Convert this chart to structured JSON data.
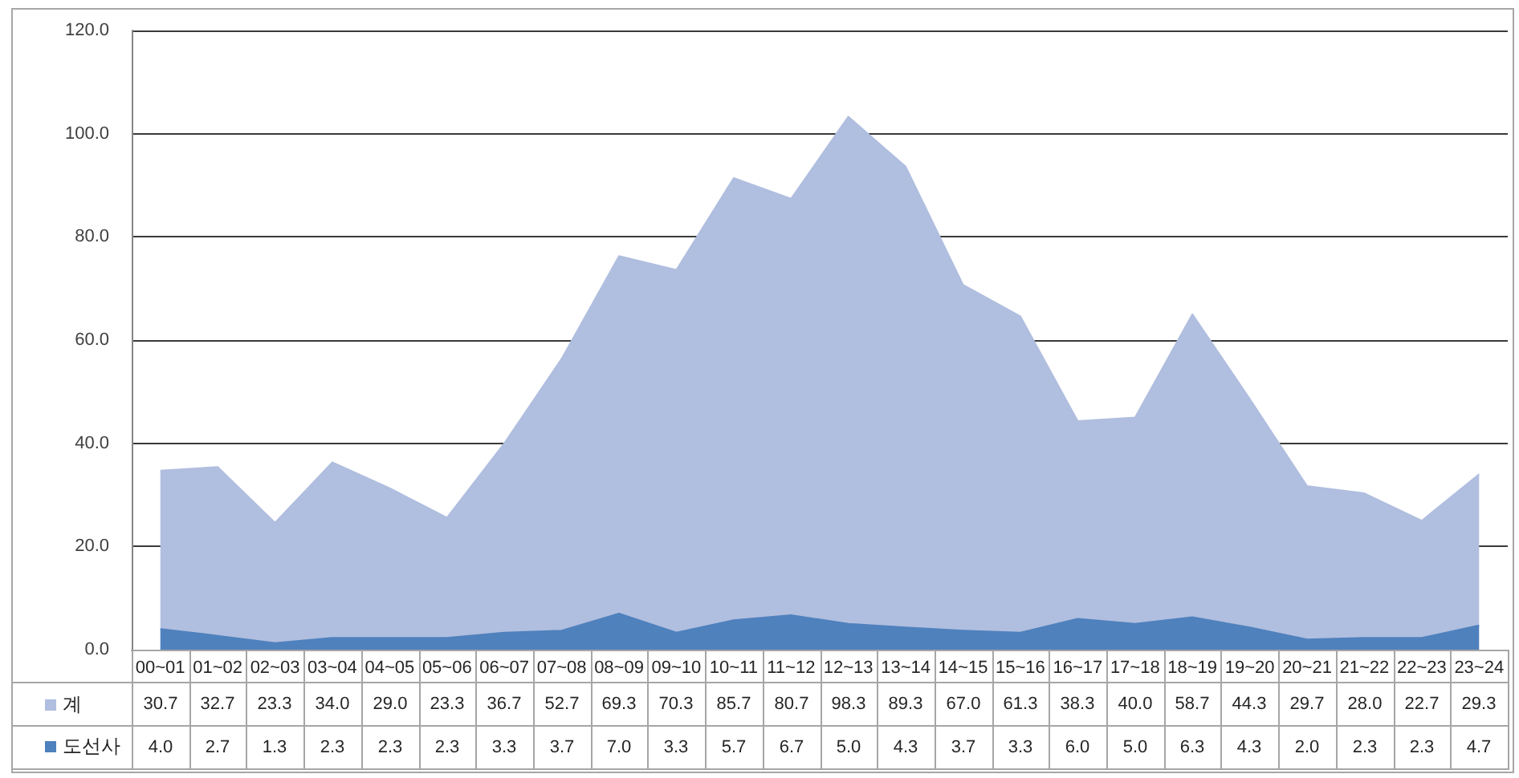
{
  "chart_data": {
    "type": "area",
    "stacked": true,
    "categories": [
      "00~01",
      "01~02",
      "02~03",
      "03~04",
      "04~05",
      "05~06",
      "06~07",
      "07~08",
      "08~09",
      "09~10",
      "10~11",
      "11~12",
      "12~13",
      "13~14",
      "14~15",
      "15~16",
      "16~17",
      "17~18",
      "18~19",
      "19~20",
      "20~21",
      "21~22",
      "22~23",
      "23~24"
    ],
    "series": [
      {
        "name": "도선사",
        "color": "#4f81bd",
        "values": [
          4.0,
          2.7,
          1.3,
          2.3,
          2.3,
          2.3,
          3.3,
          3.7,
          7.0,
          3.3,
          5.7,
          6.7,
          5.0,
          4.3,
          3.7,
          3.3,
          6.0,
          5.0,
          6.3,
          4.3,
          2.0,
          2.3,
          2.3,
          4.7
        ],
        "value_labels": [
          "4.0",
          "2.7",
          "1.3",
          "2.3",
          "2.3",
          "2.3",
          "3.3",
          "3.7",
          "7.0",
          "3.3",
          "5.7",
          "6.7",
          "5.0",
          "4.3",
          "3.7",
          "3.3",
          "6.0",
          "5.0",
          "6.3",
          "4.3",
          "2.0",
          "2.3",
          "2.3",
          "4.7"
        ]
      },
      {
        "name": "계",
        "color": "#b0bedf",
        "values": [
          30.7,
          32.7,
          23.3,
          34.0,
          29.0,
          23.3,
          36.7,
          52.7,
          69.3,
          70.3,
          85.7,
          80.7,
          98.3,
          89.3,
          67.0,
          61.3,
          38.3,
          40.0,
          58.7,
          44.3,
          29.7,
          28.0,
          22.7,
          29.3
        ],
        "value_labels": [
          "30.7",
          "32.7",
          "23.3",
          "34.0",
          "29.0",
          "23.3",
          "36.7",
          "52.7",
          "69.3",
          "70.3",
          "85.7",
          "80.7",
          "98.3",
          "89.3",
          "67.0",
          "61.3",
          "38.3",
          "40.0",
          "58.7",
          "44.3",
          "29.7",
          "28.0",
          "22.7",
          "29.3"
        ]
      }
    ],
    "ylim": [
      0,
      120
    ],
    "yticks": [
      {
        "value": 0,
        "label": "0.0"
      },
      {
        "value": 20,
        "label": "20.0"
      },
      {
        "value": 40,
        "label": "40.0"
      },
      {
        "value": 60,
        "label": "60.0"
      },
      {
        "value": 80,
        "label": "80.0"
      },
      {
        "value": 100,
        "label": "100.0"
      },
      {
        "value": 120,
        "label": "120.0"
      }
    ],
    "grid": "y",
    "legend": "bottom"
  }
}
